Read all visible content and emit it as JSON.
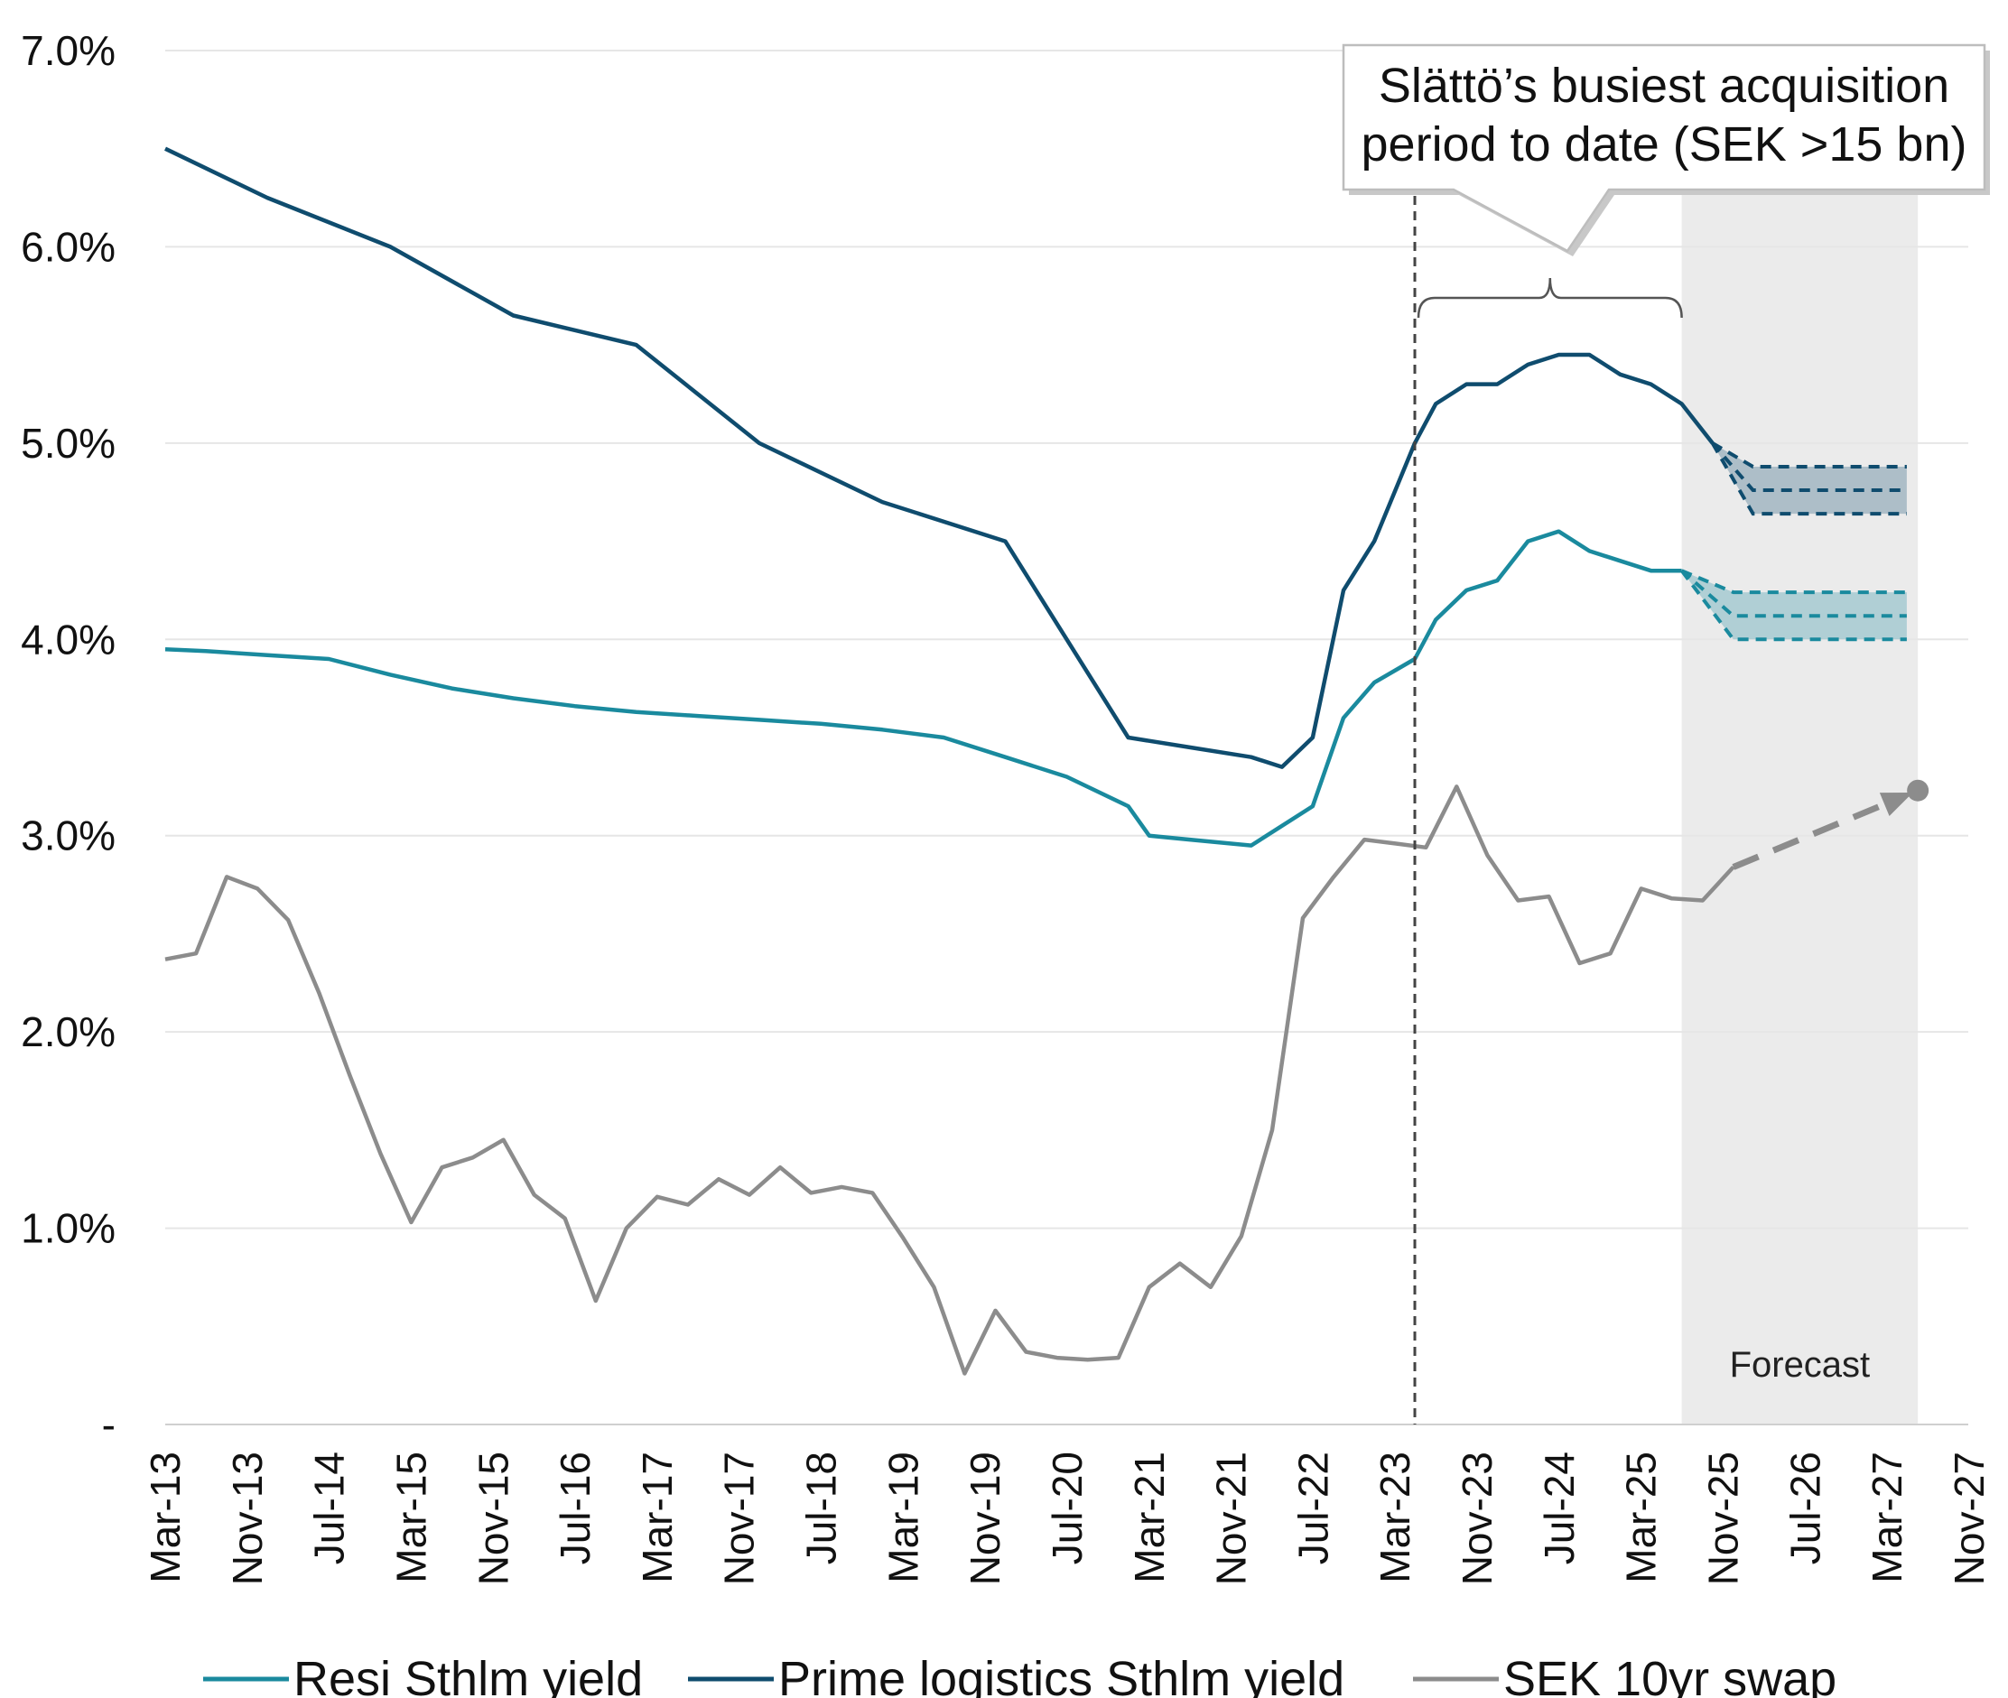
{
  "chart_data": {
    "type": "line",
    "y_tick_labels": [
      "-",
      "1.0%",
      "2.0%",
      "3.0%",
      "4.0%",
      "5.0%",
      "6.0%",
      "7.0%"
    ],
    "ylim": [
      0,
      7
    ],
    "x_tick_labels": [
      "Mar-13",
      "Nov-13",
      "Jul-14",
      "Mar-15",
      "Nov-15",
      "Jul-16",
      "Mar-17",
      "Nov-17",
      "Jul-18",
      "Mar-19",
      "Nov-19",
      "Jul-20",
      "Mar-21",
      "Nov-21",
      "Jul-22",
      "Mar-23",
      "Nov-23",
      "Jul-24",
      "Mar-25",
      "Nov-25",
      "Jul-26",
      "Mar-27",
      "Nov-27"
    ],
    "grid": true,
    "legend_placement": "bottom",
    "annotation": {
      "line1": "Slättö’s busiest acquisition",
      "line2": "period to date (SEK >15 bn)",
      "bracket_from": 2023.33,
      "bracket_to": 2025.5,
      "vline_at": 2023.33
    },
    "forecast": {
      "label": "Forecast",
      "from": 2025.5,
      "to": 2027.42
    },
    "series": [
      {
        "name": "Resi Sthlm yield",
        "color": "#1a8a9e",
        "points": [
          [
            2013.17,
            3.95
          ],
          [
            2013.5,
            3.94
          ],
          [
            2014.0,
            3.92
          ],
          [
            2014.5,
            3.9
          ],
          [
            2015.0,
            3.82
          ],
          [
            2015.5,
            3.75
          ],
          [
            2016.0,
            3.7
          ],
          [
            2016.5,
            3.66
          ],
          [
            2017.0,
            3.63
          ],
          [
            2017.5,
            3.61
          ],
          [
            2018.0,
            3.59
          ],
          [
            2018.5,
            3.57
          ],
          [
            2019.0,
            3.54
          ],
          [
            2019.5,
            3.5
          ],
          [
            2020.0,
            3.4
          ],
          [
            2020.5,
            3.3
          ],
          [
            2021.0,
            3.15
          ],
          [
            2021.17,
            3.0
          ],
          [
            2021.5,
            2.98
          ],
          [
            2022.0,
            2.95
          ],
          [
            2022.5,
            3.15
          ],
          [
            2022.75,
            3.6
          ],
          [
            2023.0,
            3.78
          ],
          [
            2023.33,
            3.9
          ],
          [
            2023.5,
            4.1
          ],
          [
            2023.75,
            4.25
          ],
          [
            2024.0,
            4.3
          ],
          [
            2024.25,
            4.5
          ],
          [
            2024.5,
            4.55
          ],
          [
            2024.75,
            4.45
          ],
          [
            2025.0,
            4.4
          ],
          [
            2025.25,
            4.35
          ],
          [
            2025.5,
            4.35
          ]
        ]
      },
      {
        "name": "Prime logistics Sthlm yield",
        "color": "#0f4c6e",
        "points": [
          [
            2013.17,
            6.5
          ],
          [
            2014.0,
            6.25
          ],
          [
            2015.0,
            6.0
          ],
          [
            2016.0,
            5.65
          ],
          [
            2017.0,
            5.5
          ],
          [
            2018.0,
            5.0
          ],
          [
            2019.0,
            4.7
          ],
          [
            2020.0,
            4.5
          ],
          [
            2021.0,
            3.5
          ],
          [
            2021.5,
            3.45
          ],
          [
            2022.0,
            3.4
          ],
          [
            2022.25,
            3.35
          ],
          [
            2022.5,
            3.5
          ],
          [
            2022.75,
            4.25
          ],
          [
            2023.0,
            4.5
          ],
          [
            2023.33,
            5.0
          ],
          [
            2023.5,
            5.2
          ],
          [
            2023.75,
            5.3
          ],
          [
            2024.0,
            5.3
          ],
          [
            2024.25,
            5.4
          ],
          [
            2024.5,
            5.45
          ],
          [
            2024.75,
            5.45
          ],
          [
            2025.0,
            5.35
          ],
          [
            2025.25,
            5.3
          ],
          [
            2025.5,
            5.2
          ],
          [
            2025.75,
            5.0
          ]
        ]
      },
      {
        "name": "SEK 10yr swap",
        "color": "#8c8c8c",
        "points": [
          [
            2013.17,
            2.37
          ],
          [
            2013.42,
            2.4
          ],
          [
            2013.67,
            2.79
          ],
          [
            2013.92,
            2.73
          ],
          [
            2014.17,
            2.57
          ],
          [
            2014.42,
            2.2
          ],
          [
            2014.67,
            1.78
          ],
          [
            2014.92,
            1.38
          ],
          [
            2015.17,
            1.03
          ],
          [
            2015.42,
            1.31
          ],
          [
            2015.67,
            1.36
          ],
          [
            2015.92,
            1.45
          ],
          [
            2016.17,
            1.17
          ],
          [
            2016.42,
            1.05
          ],
          [
            2016.67,
            0.63
          ],
          [
            2016.92,
            1.0
          ],
          [
            2017.17,
            1.16
          ],
          [
            2017.42,
            1.12
          ],
          [
            2017.67,
            1.25
          ],
          [
            2017.92,
            1.17
          ],
          [
            2018.17,
            1.31
          ],
          [
            2018.42,
            1.18
          ],
          [
            2018.67,
            1.21
          ],
          [
            2018.92,
            1.18
          ],
          [
            2019.17,
            0.95
          ],
          [
            2019.42,
            0.7
          ],
          [
            2019.67,
            0.26
          ],
          [
            2019.92,
            0.58
          ],
          [
            2020.17,
            0.37
          ],
          [
            2020.42,
            0.34
          ],
          [
            2020.67,
            0.33
          ],
          [
            2020.92,
            0.34
          ],
          [
            2021.17,
            0.7
          ],
          [
            2021.42,
            0.82
          ],
          [
            2021.67,
            0.7
          ],
          [
            2021.92,
            0.96
          ],
          [
            2022.17,
            1.5
          ],
          [
            2022.42,
            2.58
          ],
          [
            2022.67,
            2.79
          ],
          [
            2022.92,
            2.98
          ],
          [
            2023.17,
            2.96
          ],
          [
            2023.42,
            2.94
          ],
          [
            2023.67,
            3.25
          ],
          [
            2023.92,
            2.9
          ],
          [
            2024.17,
            2.67
          ],
          [
            2024.42,
            2.69
          ],
          [
            2024.67,
            2.35
          ],
          [
            2024.92,
            2.4
          ],
          [
            2025.17,
            2.73
          ],
          [
            2025.42,
            2.68
          ],
          [
            2025.67,
            2.67
          ],
          [
            2025.92,
            2.84
          ]
        ]
      }
    ],
    "forecast_series": [
      {
        "name": "Prime logistics Sthlm yield",
        "color": "#0f4c6e",
        "start": [
          2025.75,
          5.0
        ],
        "branch_at": 2026.08,
        "end_x": 2027.33,
        "high": 4.88,
        "mid": 4.76,
        "low": 4.64
      },
      {
        "name": "Resi Sthlm yield",
        "color": "#1a8a9e",
        "start": [
          2025.5,
          4.35
        ],
        "branch_at": 2025.92,
        "end_x": 2027.33,
        "high": 4.24,
        "mid": 4.12,
        "low": 4.0
      },
      {
        "name": "SEK 10yr swap",
        "color": "#8c8c8c",
        "start": [
          2025.92,
          2.84
        ],
        "end": [
          2027.42,
          3.23
        ]
      }
    ]
  }
}
